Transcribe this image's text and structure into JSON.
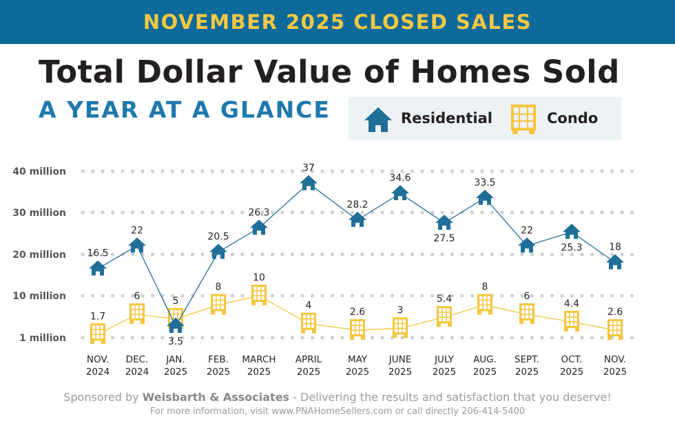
{
  "banner": "NOVEMBER 2025 CLOSED SALES",
  "title": "Total Dollar Value of Homes Sold",
  "subtitle": "A YEAR AT A GLANCE",
  "legend": {
    "residential": "Residential",
    "condo": "Condo"
  },
  "colors": {
    "banner": "#0d6a9a",
    "banner_text": "#f7c843",
    "residential": "#1f6f98",
    "condo": "#f5c53c",
    "grid": "#cfcfcf"
  },
  "chart_data": {
    "type": "line",
    "title": "Total Dollar Value of Homes Sold",
    "categories": [
      [
        "NOV.",
        "2024"
      ],
      [
        "DEC.",
        "2024"
      ],
      [
        "JAN.",
        "2025"
      ],
      [
        "FEB.",
        "2025"
      ],
      [
        "MARCH",
        "2025"
      ],
      [
        "APRIL",
        "2025"
      ],
      [
        "MAY",
        "2025"
      ],
      [
        "JUNE",
        "2025"
      ],
      [
        "JULY",
        "2025"
      ],
      [
        "AUG.",
        "2025"
      ],
      [
        "SEPT.",
        "2025"
      ],
      [
        "OCT.",
        "2025"
      ],
      [
        "NOV.",
        "2025"
      ]
    ],
    "y_ticks": [
      {
        "value": 1,
        "label": "1 million"
      },
      {
        "value": 10,
        "label": "10 million"
      },
      {
        "value": 20,
        "label": "20 million"
      },
      {
        "value": 30,
        "label": "30 million"
      },
      {
        "value": 40,
        "label": "40 million"
      }
    ],
    "yunit": "million",
    "grid": "dotted horizontal",
    "legend_position": "top-right",
    "series": [
      {
        "name": "Residential",
        "icon": "house-icon",
        "values": [
          16.5,
          22,
          3.5,
          20.5,
          26.3,
          37,
          28.2,
          34.6,
          27.5,
          33.5,
          22,
          25.3,
          18
        ],
        "labels": [
          "16.5",
          "22",
          "3.5",
          "20.5",
          "26.3",
          "37",
          "28.2",
          "34.6",
          "27.5",
          "33.5",
          "22",
          "25.3",
          "18"
        ]
      },
      {
        "name": "Condo",
        "icon": "condo-building-icon",
        "values": [
          1.7,
          6,
          5,
          8,
          10,
          4,
          2.6,
          3,
          5.4,
          8,
          6,
          4.4,
          2.6
        ],
        "labels": [
          "1.7",
          "6",
          "5",
          "8",
          "10",
          "4",
          "2.6",
          "3",
          "5.4",
          "8",
          "6",
          "4.4",
          "2.6"
        ]
      }
    ]
  },
  "footer": {
    "sponsor_prefix": "Sponsored by ",
    "sponsor_name": "Weisbarth & Associates",
    "sponsor_suffix": " - Delivering the results and satisfaction that you deserve!",
    "contact": "For more information, visit www.PNAHomeSellers.com or call directly 206-414-5400"
  }
}
